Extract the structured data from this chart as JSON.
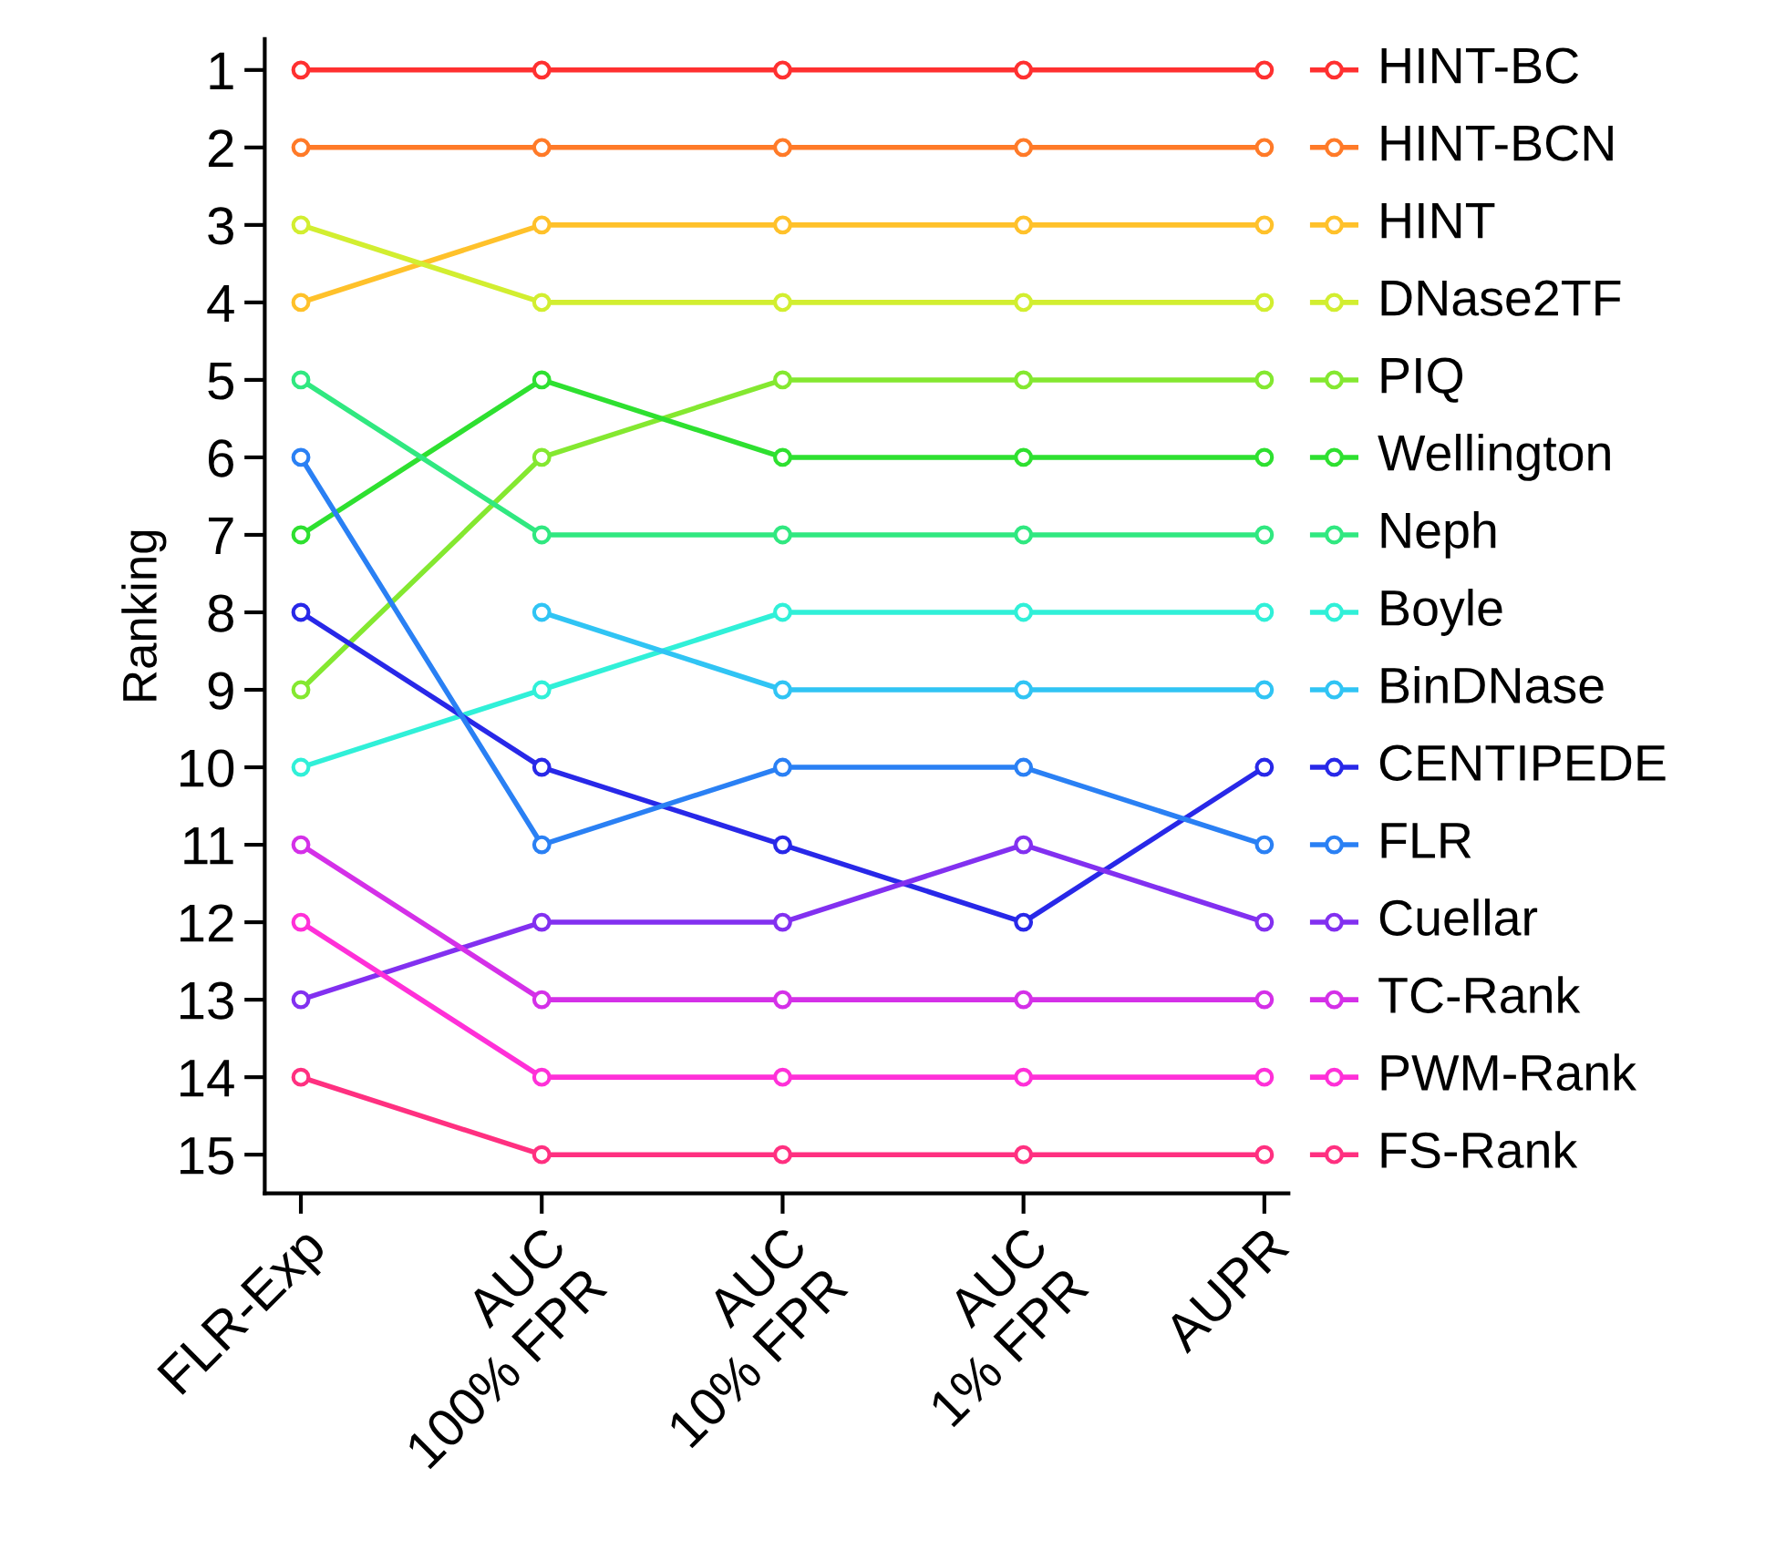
{
  "chart_data": {
    "type": "line",
    "ylabel": "Ranking",
    "categories": [
      "FLR-Exp",
      "AUC\n100% FPR",
      "AUC\n10% FPR",
      "AUC\n1% FPR",
      "AUPR"
    ],
    "ylim": [
      15.5,
      0.6
    ],
    "yticks": [
      1,
      2,
      3,
      4,
      5,
      6,
      7,
      8,
      9,
      10,
      11,
      12,
      13,
      14,
      15
    ],
    "marker": "circle",
    "legend": "right",
    "line_style": "solid",
    "grid": false,
    "series": [
      {
        "name": "HINT-BC",
        "color": "#ff3030",
        "values": [
          1,
          1,
          1,
          1,
          1
        ]
      },
      {
        "name": "HINT-BCN",
        "color": "#ff7a28",
        "values": [
          2,
          2,
          2,
          2,
          2
        ]
      },
      {
        "name": "HINT",
        "color": "#ffc12a",
        "values": [
          4,
          3,
          3,
          3,
          3
        ]
      },
      {
        "name": "DNase2TF",
        "color": "#d2ee30",
        "values": [
          3,
          4,
          4,
          4,
          4
        ]
      },
      {
        "name": "PIQ",
        "color": "#84e830",
        "values": [
          9,
          6,
          5,
          5,
          5
        ]
      },
      {
        "name": "Wellington",
        "color": "#2ee030",
        "values": [
          7,
          5,
          6,
          6,
          6
        ]
      },
      {
        "name": "Neph",
        "color": "#30e880",
        "values": [
          5,
          7,
          7,
          7,
          7
        ]
      },
      {
        "name": "Boyle",
        "color": "#30f0d8",
        "values": [
          10,
          9,
          8,
          8,
          8
        ]
      },
      {
        "name": "BinDNase",
        "color": "#30c4f4",
        "values": [
          null,
          8,
          9,
          9,
          9
        ]
      },
      {
        "name": "CENTIPEDE",
        "color": "#2828e8",
        "values": [
          8,
          10,
          11,
          12,
          10
        ]
      },
      {
        "name": "FLR",
        "color": "#2a80f4",
        "values": [
          6,
          11,
          10,
          10,
          11
        ]
      },
      {
        "name": "Cuellar",
        "color": "#8230f0",
        "values": [
          13,
          12,
          12,
          11,
          12
        ]
      },
      {
        "name": "TC-Rank",
        "color": "#d430e8",
        "values": [
          11,
          13,
          13,
          13,
          13
        ]
      },
      {
        "name": "PWM-Rank",
        "color": "#ff30d8",
        "values": [
          12,
          14,
          14,
          14,
          14
        ]
      },
      {
        "name": "FS-Rank",
        "color": "#ff3080",
        "values": [
          14,
          15,
          15,
          15,
          15
        ]
      }
    ]
  }
}
